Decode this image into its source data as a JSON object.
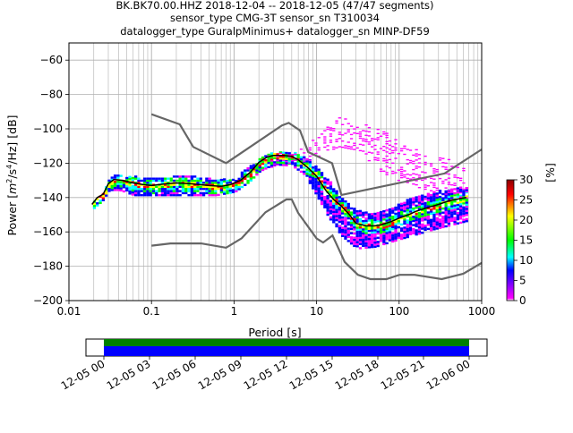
{
  "chart_data": {
    "type": "heatmap",
    "title_lines": [
      "BK.BK70.00.HHZ   2018-12-04 -- 2018-12-05  (47/47 segments)",
      "sensor_type CMG-3T sensor_sn T310034",
      "datalogger_type GuralpMinimus+ datalogger_sn MINP-DF59"
    ],
    "xlabel": "Period [s]",
    "ylabel_parts": {
      "pre": "Power [",
      "m": "m",
      "exp2": "2",
      "mid": "/s",
      "exp4": "4",
      "post": "/Hz] [dB]"
    },
    "x_scale": "log",
    "xlim": [
      0.01,
      1000
    ],
    "ylim": [
      -200,
      -50
    ],
    "x_ticks": [
      {
        "v": 0.01,
        "label": "0.01"
      },
      {
        "v": 0.1,
        "label": "0.1"
      },
      {
        "v": 1,
        "label": "1"
      },
      {
        "v": 10,
        "label": "10"
      },
      {
        "v": 100,
        "label": "100"
      },
      {
        "v": 1000,
        "label": "1000"
      }
    ],
    "y_ticks": [
      {
        "v": -60,
        "label": "−60"
      },
      {
        "v": -80,
        "label": "−80"
      },
      {
        "v": -100,
        "label": "−100"
      },
      {
        "v": -120,
        "label": "−120"
      },
      {
        "v": -140,
        "label": "−140"
      },
      {
        "v": -160,
        "label": "−160"
      },
      {
        "v": -180,
        "label": "−180"
      },
      {
        "v": -200,
        "label": "−200"
      }
    ],
    "grid": true,
    "colorbar": {
      "label": "[%]",
      "range": [
        0,
        30
      ],
      "ticks": [
        {
          "v": 0,
          "label": "0"
        },
        {
          "v": 5,
          "label": "5"
        },
        {
          "v": 10,
          "label": "10"
        },
        {
          "v": 15,
          "label": "15"
        },
        {
          "v": 20,
          "label": "20"
        },
        {
          "v": 25,
          "label": "25"
        },
        {
          "v": 30,
          "label": "30"
        }
      ],
      "colors": [
        "#ffffff",
        "#ff00ff",
        "#0000ff",
        "#00ffff",
        "#00ff00",
        "#ffff00",
        "#ff0000",
        "#8b0000"
      ]
    },
    "noise_model_color": "#666666",
    "mode_color": "#000000",
    "high_noise_model": [
      [
        0.1,
        -91.5
      ],
      [
        0.22,
        -97.4
      ],
      [
        0.32,
        -110.5
      ],
      [
        0.8,
        -120
      ],
      [
        3.8,
        -98
      ],
      [
        4.6,
        -96.5
      ],
      [
        6.3,
        -101
      ],
      [
        7.9,
        -113.5
      ],
      [
        15.4,
        -120
      ],
      [
        20,
        -138.5
      ],
      [
        354.8,
        -126
      ],
      [
        1000,
        -112
      ]
    ],
    "low_noise_model": [
      [
        0.1,
        -168
      ],
      [
        0.17,
        -166.7
      ],
      [
        0.4,
        -166.7
      ],
      [
        0.8,
        -169.2
      ],
      [
        1.24,
        -163.7
      ],
      [
        2.4,
        -148.6
      ],
      [
        4.3,
        -141.1
      ],
      [
        5,
        -141.1
      ],
      [
        6,
        -149
      ],
      [
        10,
        -163.8
      ],
      [
        12,
        -166.2
      ],
      [
        15.6,
        -162.1
      ],
      [
        21.9,
        -177.5
      ],
      [
        31.6,
        -185
      ],
      [
        45,
        -187.5
      ],
      [
        70,
        -187.5
      ],
      [
        101,
        -185
      ],
      [
        154,
        -185
      ],
      [
        328,
        -187.5
      ],
      [
        600,
        -184.4
      ],
      [
        1000,
        -178
      ]
    ],
    "mode_curve": [
      [
        0.019,
        -144
      ],
      [
        0.022,
        -140
      ],
      [
        0.026,
        -138
      ],
      [
        0.03,
        -132
      ],
      [
        0.035,
        -129.5
      ],
      [
        0.045,
        -130
      ],
      [
        0.06,
        -131.5
      ],
      [
        0.08,
        -132.5
      ],
      [
        0.1,
        -133
      ],
      [
        0.15,
        -132
      ],
      [
        0.2,
        -131.5
      ],
      [
        0.3,
        -132
      ],
      [
        0.5,
        -133
      ],
      [
        0.7,
        -133.5
      ],
      [
        0.9,
        -132.5
      ],
      [
        1.2,
        -130
      ],
      [
        1.6,
        -125
      ],
      [
        2,
        -119.5
      ],
      [
        2.5,
        -116.5
      ],
      [
        3,
        -115.5
      ],
      [
        4,
        -115.5
      ],
      [
        5,
        -116
      ],
      [
        6,
        -118
      ],
      [
        8,
        -123
      ],
      [
        10,
        -127.5
      ],
      [
        13,
        -136
      ],
      [
        16,
        -141
      ],
      [
        20,
        -145
      ],
      [
        25,
        -150
      ],
      [
        30,
        -155
      ],
      [
        40,
        -156.5
      ],
      [
        50,
        -156.5
      ],
      [
        60,
        -156
      ],
      [
        80,
        -154
      ],
      [
        100,
        -152
      ],
      [
        130,
        -150
      ],
      [
        160,
        -148
      ],
      [
        200,
        -146.5
      ],
      [
        300,
        -144
      ],
      [
        400,
        -142
      ],
      [
        500,
        -141
      ],
      [
        650,
        -140
      ]
    ],
    "core_band": [
      [
        0.019,
        -146,
        -142
      ],
      [
        0.025,
        -141,
        -137
      ],
      [
        0.03,
        -135,
        -127
      ],
      [
        0.04,
        -135,
        -126
      ],
      [
        0.06,
        -138,
        -127
      ],
      [
        0.1,
        -138,
        -128
      ],
      [
        0.2,
        -138,
        -127
      ],
      [
        0.35,
        -138,
        -127
      ],
      [
        0.6,
        -138,
        -129
      ],
      [
        1,
        -136,
        -128
      ],
      [
        1.5,
        -130,
        -121
      ],
      [
        2,
        -124,
        -116
      ],
      [
        3,
        -120,
        -113
      ],
      [
        5,
        -121,
        -113
      ],
      [
        7,
        -126,
        -115
      ],
      [
        10,
        -139,
        -122
      ],
      [
        13,
        -149,
        -128
      ],
      [
        16,
        -156,
        -133
      ],
      [
        20,
        -162,
        -140
      ],
      [
        30,
        -169,
        -147
      ],
      [
        50,
        -168,
        -148
      ],
      [
        80,
        -165,
        -145
      ],
      [
        130,
        -162,
        -140
      ],
      [
        250,
        -158,
        -136
      ],
      [
        650,
        -153,
        -133
      ]
    ],
    "spike_band": [
      [
        2.5,
        -124,
        -114
      ],
      [
        4,
        -120,
        -113
      ],
      [
        8,
        -118,
        -108
      ],
      [
        12,
        -114,
        -100
      ],
      [
        18,
        -110,
        -92
      ],
      [
        30,
        -112,
        -95
      ],
      [
        60,
        -125,
        -100
      ],
      [
        120,
        -132,
        -110
      ],
      [
        300,
        -137,
        -116
      ],
      [
        650,
        -140,
        -120
      ]
    ]
  },
  "timeline": {
    "tick_labels": [
      "12-05 00",
      "12-05 03",
      "12-05 06",
      "12-05 09",
      "12-05 12",
      "12-05 15",
      "12-05 18",
      "12-05 21",
      "12-06 00"
    ],
    "coverage_fraction": 1.0,
    "color_top": "#008000",
    "color_bottom": "#0000ff"
  }
}
